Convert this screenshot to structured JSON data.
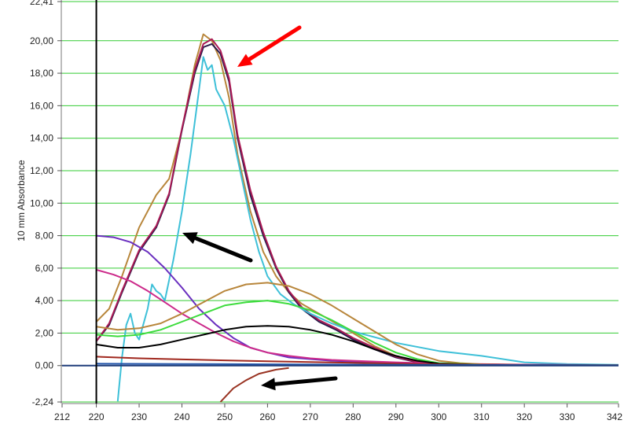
{
  "chart_data": {
    "type": "line",
    "ylabel": "10 mm Absorbance",
    "xlabel": "",
    "xlim": [
      212,
      342
    ],
    "ylim": [
      -2.24,
      22.41
    ],
    "grid": true,
    "legend": "none",
    "x_ticks": [
      {
        "value": 212,
        "label": "212"
      },
      {
        "value": 220,
        "label": "220"
      },
      {
        "value": 230,
        "label": "230"
      },
      {
        "value": 240,
        "label": "240"
      },
      {
        "value": 250,
        "label": "250"
      },
      {
        "value": 260,
        "label": "260"
      },
      {
        "value": 270,
        "label": "270"
      },
      {
        "value": 280,
        "label": "280"
      },
      {
        "value": 290,
        "label": "290"
      },
      {
        "value": 300,
        "label": "300"
      },
      {
        "value": 310,
        "label": "310"
      },
      {
        "value": 320,
        "label": "320"
      },
      {
        "value": 330,
        "label": "330"
      },
      {
        "value": 342,
        "label": "342"
      }
    ],
    "y_ticks": [
      {
        "value": -2.24,
        "label": "-2,24"
      },
      {
        "value": 0,
        "label": "0,00"
      },
      {
        "value": 2,
        "label": "2,00"
      },
      {
        "value": 4,
        "label": "4,00"
      },
      {
        "value": 6,
        "label": "6,00"
      },
      {
        "value": 8,
        "label": "8,00"
      },
      {
        "value": 10,
        "label": "10,00"
      },
      {
        "value": 12,
        "label": "12,00"
      },
      {
        "value": 14,
        "label": "14,00"
      },
      {
        "value": 16,
        "label": "16,00"
      },
      {
        "value": 18,
        "label": "18,00"
      },
      {
        "value": 20,
        "label": "20,00"
      },
      {
        "value": 22.41,
        "label": "22,41"
      }
    ],
    "colors": {
      "grid": "#33cc33",
      "zero_line": "#1f3d7a",
      "axis": "#000000",
      "red_arrow": "#ff0000",
      "black_arrow": "#000000"
    },
    "series": [
      {
        "color": "#b8863b",
        "x": [
          220,
          223,
          226,
          230,
          234,
          237,
          240,
          243,
          245,
          247,
          249,
          251,
          253,
          256,
          259,
          262,
          265,
          268,
          272,
          276,
          280,
          285,
          290,
          295,
          300,
          310,
          320,
          342
        ],
        "y": [
          2.7,
          3.5,
          5.5,
          8.5,
          10.5,
          11.5,
          14.5,
          18.5,
          20.4,
          20.0,
          18.8,
          16.5,
          13.0,
          9.5,
          7.0,
          5.5,
          4.5,
          3.8,
          3.2,
          2.6,
          2.0,
          1.2,
          0.6,
          0.25,
          0.1,
          0.05,
          0.03,
          0.02
        ]
      },
      {
        "color": "#2a1a4a",
        "x": [
          220,
          223,
          226,
          230,
          234,
          237,
          240,
          243,
          245,
          247,
          249,
          251,
          253,
          256,
          259,
          262,
          265,
          268,
          272,
          276,
          280,
          285,
          290,
          295,
          300,
          310,
          320,
          342
        ],
        "y": [
          1.5,
          2.5,
          4.5,
          7.0,
          8.5,
          10.5,
          14.5,
          18.0,
          19.6,
          19.8,
          19.2,
          17.5,
          14.0,
          10.5,
          8.0,
          6.0,
          4.5,
          3.5,
          2.7,
          2.2,
          1.6,
          1.0,
          0.5,
          0.2,
          0.08,
          0.04,
          0.02,
          0.01
        ]
      },
      {
        "color": "#aa1a55",
        "x": [
          220,
          223,
          226,
          230,
          234,
          237,
          240,
          243,
          245,
          247,
          249,
          251,
          253,
          256,
          259,
          262,
          265,
          268,
          272,
          276,
          280,
          285,
          290,
          295,
          300,
          310,
          320,
          342
        ],
        "y": [
          1.5,
          2.6,
          4.6,
          7.1,
          8.6,
          10.6,
          14.6,
          18.2,
          19.8,
          20.1,
          19.4,
          17.7,
          14.2,
          10.8,
          8.2,
          6.1,
          4.6,
          3.6,
          2.8,
          2.3,
          1.7,
          1.1,
          0.55,
          0.22,
          0.1,
          0.05,
          0.03,
          0.02
        ]
      },
      {
        "color": "#3ec0d8",
        "x": [
          225,
          226,
          227,
          228,
          229,
          230,
          232,
          233,
          234,
          235,
          236,
          238,
          240,
          242,
          244,
          245,
          246,
          247,
          248,
          249,
          250,
          252,
          254,
          256,
          258,
          260,
          263,
          266,
          270,
          275,
          280,
          290,
          300,
          310,
          320,
          330,
          342
        ],
        "y": [
          -2.2,
          0.5,
          2.5,
          3.2,
          2.0,
          1.6,
          3.5,
          5.0,
          4.6,
          4.4,
          4.0,
          6.5,
          9.5,
          13.0,
          17.0,
          19.0,
          18.2,
          18.5,
          17.0,
          16.5,
          16.0,
          14.0,
          11.5,
          9.0,
          7.0,
          5.5,
          4.4,
          3.8,
          3.2,
          2.6,
          2.1,
          1.4,
          0.9,
          0.6,
          0.2,
          0.1,
          0.05
        ]
      },
      {
        "color": "#6a2fbf",
        "x": [
          220,
          224,
          228,
          232,
          236,
          240,
          244,
          248,
          252,
          256,
          260,
          265,
          270,
          275,
          280,
          290,
          300,
          320,
          342
        ],
        "y": [
          8.0,
          7.9,
          7.6,
          7.0,
          6.0,
          4.8,
          3.5,
          2.5,
          1.7,
          1.1,
          0.8,
          0.5,
          0.4,
          0.3,
          0.25,
          0.15,
          0.1,
          0.05,
          0.02
        ]
      },
      {
        "color": "#cc2a8a",
        "x": [
          220,
          224,
          228,
          232,
          236,
          240,
          244,
          248,
          252,
          256,
          260,
          265,
          270,
          275,
          280,
          290,
          300,
          320,
          342
        ],
        "y": [
          5.9,
          5.6,
          5.2,
          4.6,
          3.9,
          3.2,
          2.6,
          2.0,
          1.5,
          1.1,
          0.8,
          0.6,
          0.45,
          0.35,
          0.3,
          0.2,
          0.12,
          0.06,
          0.03
        ]
      },
      {
        "color": "#b8863b",
        "x": [
          220,
          225,
          230,
          235,
          240,
          245,
          250,
          255,
          260,
          265,
          270,
          275,
          280,
          285,
          290,
          295,
          300,
          305,
          310,
          320,
          342
        ],
        "y": [
          2.4,
          2.2,
          2.3,
          2.6,
          3.2,
          3.9,
          4.6,
          5.0,
          5.1,
          4.9,
          4.4,
          3.7,
          2.9,
          2.1,
          1.3,
          0.7,
          0.3,
          0.15,
          0.08,
          0.03,
          0.02
        ]
      },
      {
        "color": "#3ddc3d",
        "x": [
          220,
          225,
          230,
          235,
          240,
          245,
          250,
          255,
          260,
          265,
          270,
          275,
          280,
          285,
          290,
          295,
          300,
          310,
          320,
          342
        ],
        "y": [
          1.9,
          1.8,
          1.9,
          2.2,
          2.7,
          3.2,
          3.7,
          3.9,
          4.0,
          3.8,
          3.4,
          2.8,
          2.1,
          1.4,
          0.8,
          0.4,
          0.15,
          0.06,
          0.03,
          0.02
        ]
      },
      {
        "color": "#000000",
        "x": [
          220,
          225,
          230,
          235,
          240,
          245,
          250,
          255,
          260,
          265,
          270,
          275,
          280,
          285,
          290,
          295,
          300,
          310,
          320,
          342
        ],
        "y": [
          1.3,
          1.1,
          1.1,
          1.3,
          1.6,
          1.9,
          2.2,
          2.4,
          2.45,
          2.4,
          2.2,
          1.9,
          1.5,
          1.0,
          0.6,
          0.3,
          0.12,
          0.05,
          0.02,
          0.01
        ]
      },
      {
        "color": "#a0281e",
        "x": [
          220,
          230,
          240,
          250,
          260,
          270,
          280,
          290,
          300,
          320,
          342
        ],
        "y": [
          0.55,
          0.45,
          0.38,
          0.32,
          0.27,
          0.22,
          0.17,
          0.12,
          0.08,
          0.04,
          0.02
        ]
      },
      {
        "color": "#993322",
        "x": [
          249,
          252,
          255,
          258,
          262,
          265
        ],
        "y": [
          -2.24,
          -1.4,
          -0.9,
          -0.5,
          -0.25,
          -0.15
        ]
      },
      {
        "color": "#2255aa",
        "x": [
          220,
          240,
          260,
          280,
          300,
          320,
          342
        ],
        "y": [
          0.12,
          0.1,
          0.08,
          0.06,
          0.04,
          0.03,
          0.02
        ]
      }
    ]
  }
}
